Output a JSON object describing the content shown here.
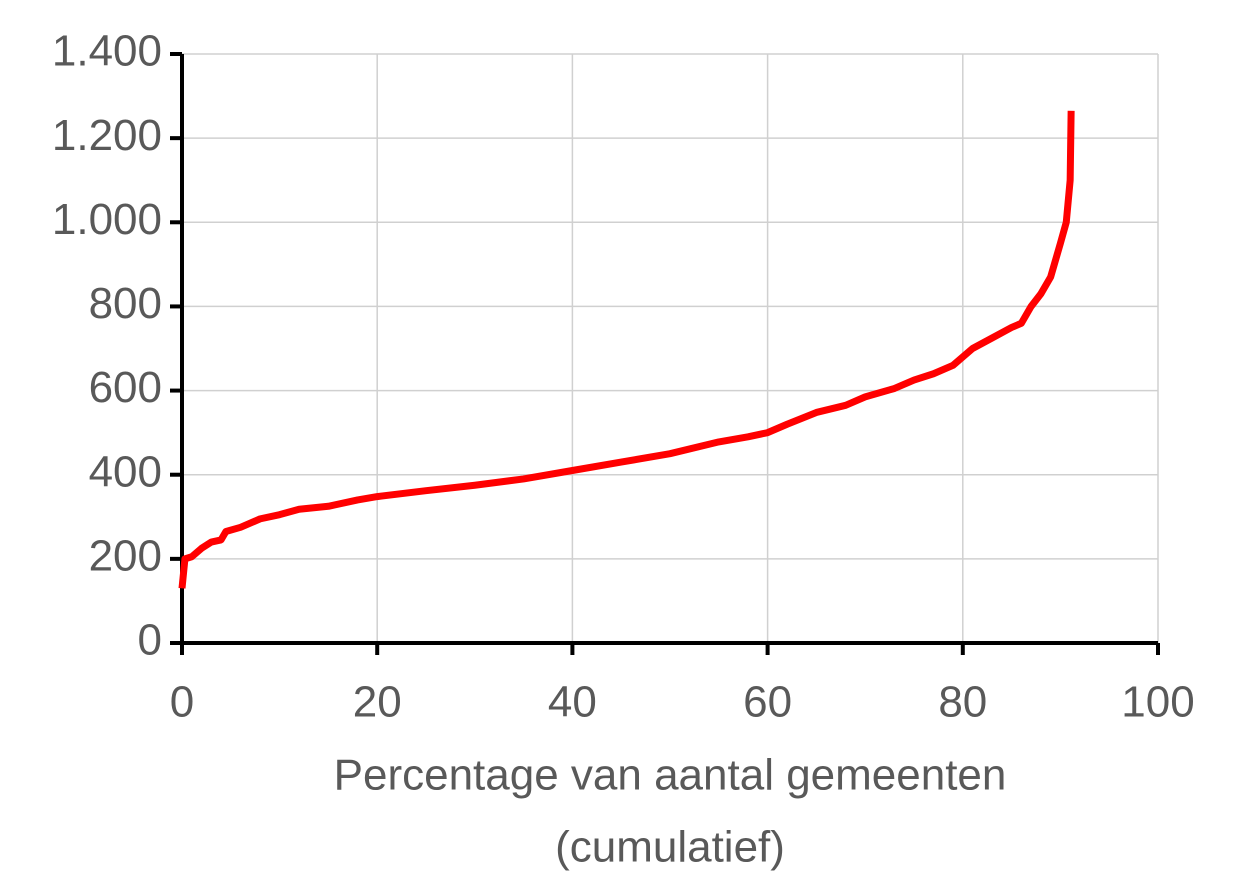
{
  "chart_data": {
    "type": "line",
    "x_label": [
      "Percentage van aantal gemeenten",
      "(cumulatief)"
    ],
    "series": [
      {
        "color": "#ff0000",
        "x": [
          0,
          0.3,
          1,
          2,
          3,
          4,
          4.5,
          6,
          8,
          10,
          12,
          15,
          18,
          20,
          25,
          30,
          35,
          40,
          45,
          50,
          55,
          58,
          60,
          62,
          65,
          68,
          70,
          73,
          75,
          77,
          79,
          81,
          83,
          85,
          86,
          87,
          88,
          89,
          90,
          90.6,
          91,
          91.1
        ],
        "values": [
          130,
          200,
          205,
          225,
          240,
          245,
          265,
          275,
          295,
          305,
          318,
          325,
          340,
          348,
          362,
          375,
          390,
          410,
          430,
          450,
          478,
          490,
          500,
          520,
          548,
          565,
          585,
          605,
          625,
          640,
          660,
          700,
          725,
          750,
          760,
          800,
          830,
          870,
          950,
          1000,
          1100,
          1265
        ]
      }
    ],
    "xlim": [
      0,
      100
    ],
    "xticks": [
      0,
      20,
      40,
      60,
      80,
      100
    ],
    "ylim": [
      0,
      1400
    ],
    "yticks": [
      0,
      200,
      400,
      600,
      800,
      {
        "value": 1000,
        "label": "1.000"
      },
      {
        "value": 1200,
        "label": "1.200"
      },
      {
        "value": 1400,
        "label": "1.400"
      }
    ],
    "grid": true
  }
}
